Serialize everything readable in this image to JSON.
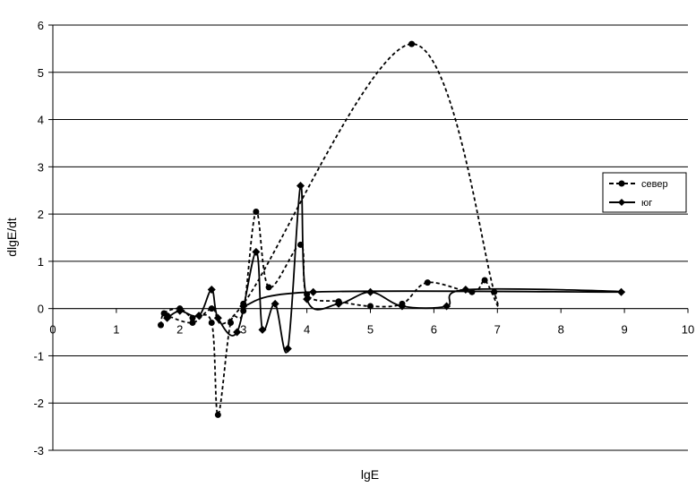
{
  "chart_data": {
    "type": "scatter",
    "xlabel": "lgE",
    "ylabel": "dlgE/dt",
    "xlim": [
      0,
      10
    ],
    "ylim": [
      -3,
      6
    ],
    "x_ticks": [
      "0",
      "1",
      "2",
      "3",
      "4",
      "5",
      "6",
      "7",
      "8",
      "9",
      "10"
    ],
    "y_ticks": [
      "-3",
      "-2",
      "-1",
      "0",
      "1",
      "2",
      "3",
      "4",
      "5",
      "6"
    ],
    "grid": "horizontal",
    "legend_position": "right",
    "series": [
      {
        "name": "север",
        "line_style": "dashed",
        "marker": "circle",
        "color": "#000000",
        "points": [
          [
            1.7,
            -0.35
          ],
          [
            1.75,
            -0.1
          ],
          [
            2.0,
            0.0
          ],
          [
            2.2,
            -0.2
          ],
          [
            2.5,
            -0.3
          ],
          [
            2.6,
            -2.25
          ],
          [
            2.8,
            -0.3
          ],
          [
            3.0,
            -0.05
          ],
          [
            3.2,
            2.05
          ],
          [
            3.4,
            0.45
          ],
          [
            3.9,
            1.35
          ],
          [
            4.0,
            0.3
          ],
          [
            4.5,
            0.15
          ],
          [
            5.0,
            0.05
          ],
          [
            5.5,
            0.1
          ],
          [
            5.9,
            0.55
          ],
          [
            6.6,
            0.35
          ],
          [
            6.8,
            0.6
          ],
          [
            6.95,
            0.35
          ],
          [
            5.65,
            5.6
          ],
          [
            3.0,
            0.1
          ],
          [
            2.5,
            0.0
          ],
          [
            2.2,
            -0.3
          ],
          [
            1.8,
            -0.15
          ]
        ]
      },
      {
        "name": "юг",
        "line_style": "solid",
        "marker": "diamond",
        "color": "#000000",
        "points": [
          [
            1.8,
            -0.2
          ],
          [
            2.0,
            -0.05
          ],
          [
            2.3,
            -0.15
          ],
          [
            2.5,
            0.4
          ],
          [
            2.6,
            -0.2
          ],
          [
            2.9,
            -0.5
          ],
          [
            3.2,
            1.2
          ],
          [
            3.3,
            -0.45
          ],
          [
            3.5,
            0.1
          ],
          [
            3.7,
            -0.85
          ],
          [
            3.9,
            2.6
          ],
          [
            4.0,
            0.2
          ],
          [
            4.5,
            0.1
          ],
          [
            5.0,
            0.35
          ],
          [
            5.5,
            0.05
          ],
          [
            6.2,
            0.05
          ],
          [
            6.5,
            0.4
          ],
          [
            8.95,
            0.35
          ],
          [
            4.1,
            0.35
          ],
          [
            3.0,
            0.05
          ]
        ]
      }
    ]
  }
}
